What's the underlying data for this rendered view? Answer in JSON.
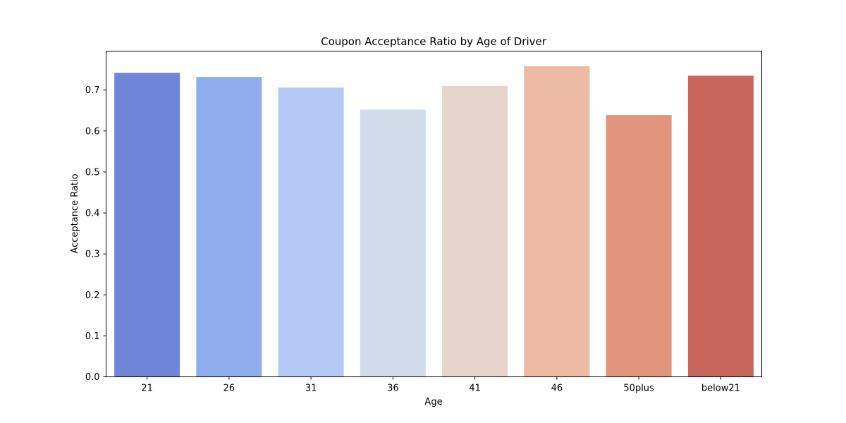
{
  "chart_data": {
    "type": "bar",
    "title": "Coupon Acceptance Ratio by Age of Driver",
    "xlabel": "Age",
    "ylabel": "Acceptance Ratio",
    "categories": [
      "21",
      "26",
      "31",
      "36",
      "41",
      "46",
      "50plus",
      "below21"
    ],
    "values": [
      0.742,
      0.732,
      0.706,
      0.652,
      0.71,
      0.758,
      0.639,
      0.735
    ],
    "ylim": [
      0,
      0.795
    ],
    "yticks": [
      0.0,
      0.1,
      0.2,
      0.3,
      0.4,
      0.5,
      0.6,
      0.7
    ],
    "ytick_labels": [
      "0.0",
      "0.1",
      "0.2",
      "0.3",
      "0.4",
      "0.5",
      "0.6",
      "0.7"
    ],
    "grid": false,
    "colors": [
      "#6f85d7",
      "#8fadee",
      "#b4c9f3",
      "#d1dbe9",
      "#e6d5cd",
      "#edbba4",
      "#e0957c",
      "#c8655d"
    ]
  }
}
